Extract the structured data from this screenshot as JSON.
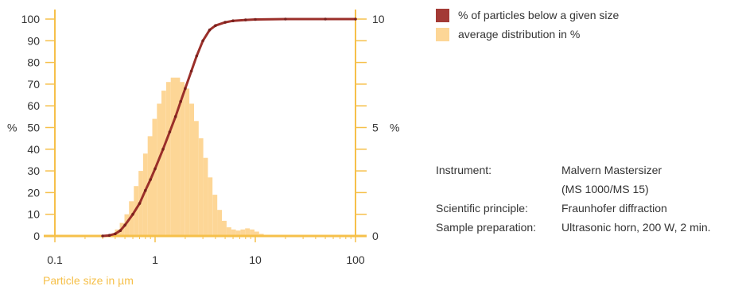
{
  "chart_data": {
    "type": "bar+line",
    "xlabel": "Particle size in µm",
    "x_scale": "log",
    "xlim": [
      0.1,
      100
    ],
    "x_ticks": [
      0.1,
      1,
      10,
      100
    ],
    "x_tick_labels": [
      "0.1",
      "1",
      "10",
      "100"
    ],
    "left_axis": {
      "unit": "%",
      "ylim": [
        0,
        100
      ],
      "ticks": [
        0,
        10,
        20,
        30,
        40,
        50,
        60,
        70,
        80,
        90,
        100
      ]
    },
    "right_axis": {
      "unit": "%",
      "ylim": [
        0,
        10
      ],
      "labeled_ticks": [
        0,
        5,
        10
      ]
    },
    "grid": false,
    "legend_position": "right",
    "series": [
      {
        "name": "% of particles below a given size",
        "type": "line",
        "axis": "left",
        "color": "#9b2f2a",
        "x": [
          0.3,
          0.35,
          0.4,
          0.45,
          0.5,
          0.6,
          0.7,
          0.8,
          0.9,
          1.0,
          1.2,
          1.4,
          1.6,
          1.8,
          2.0,
          2.3,
          2.6,
          3.0,
          3.5,
          4,
          5,
          6,
          8,
          10,
          20,
          50,
          100
        ],
        "y": [
          0,
          0.3,
          1,
          2.5,
          5,
          10,
          15,
          21,
          26,
          31,
          40,
          48,
          55,
          62,
          68,
          76,
          83,
          90,
          95,
          97,
          98.5,
          99.2,
          99.6,
          99.8,
          100,
          100,
          100
        ]
      },
      {
        "name": "average distribution in %",
        "type": "bar",
        "axis": "right",
        "color": "#fdd696",
        "x": [
          0.42,
          0.47,
          0.52,
          0.58,
          0.65,
          0.72,
          0.8,
          0.89,
          0.99,
          1.1,
          1.22,
          1.36,
          1.51,
          1.68,
          1.87,
          2.08,
          2.32,
          2.58,
          2.87,
          3.19,
          3.55,
          3.95,
          4.4,
          4.9,
          5.45,
          6.07,
          6.75,
          7.5,
          8.35,
          9.3,
          10.35,
          11.5
        ],
        "y": [
          0.3,
          0.6,
          1.0,
          1.6,
          2.3,
          3.0,
          3.8,
          4.6,
          5.4,
          6.1,
          6.7,
          7.1,
          7.3,
          7.3,
          7.1,
          6.8,
          6.1,
          5.3,
          4.5,
          3.6,
          2.7,
          1.9,
          1.2,
          0.7,
          0.4,
          0.3,
          0.25,
          0.3,
          0.35,
          0.3,
          0.2,
          0.1
        ]
      }
    ]
  },
  "legend": {
    "items": [
      {
        "label": "% of particles below a given size",
        "color": "#a33a35"
      },
      {
        "label": "average distribution in %",
        "color": "#fdd696"
      }
    ]
  },
  "axes": {
    "left_unit": "%",
    "right_unit": "%",
    "axis_color": "#f6c04a"
  },
  "info": {
    "rows": [
      {
        "label": "Instrument:",
        "value": "Malvern Mastersizer"
      },
      {
        "label": "",
        "value": "(MS 1000/MS 15)"
      },
      {
        "label": "Scientific principle:",
        "value": "Fraunhofer diffraction"
      },
      {
        "label": "Sample preparation:",
        "value": "Ultrasonic horn, 200 W, 2 min."
      }
    ]
  }
}
